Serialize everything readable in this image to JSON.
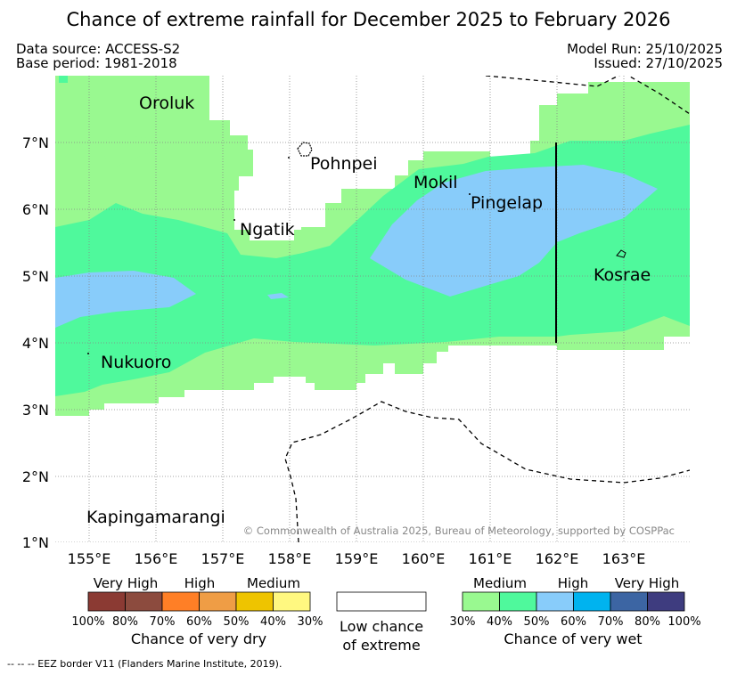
{
  "title": "Chance of extreme rainfall for December 2025 to February 2026",
  "header": {
    "data_source": "Data source: ACCESS-S2",
    "base_period": "Base period: 1981-2018",
    "model_run": "Model Run: 25/10/2025",
    "issued": "Issued: 27/10/2025"
  },
  "map": {
    "x_ticks": [
      "155°E",
      "156°E",
      "157°E",
      "158°E",
      "159°E",
      "160°E",
      "161°E",
      "162°E",
      "163°E"
    ],
    "y_ticks": [
      "7°N",
      "6°N",
      "5°N",
      "4°N",
      "3°N",
      "2°N",
      "1°N"
    ],
    "places": {
      "oroluk": "Oroluk",
      "pohnpei": "Pohnpei",
      "mokil": "Mokil",
      "pingelap": "Pingelap",
      "ngatik": "Ngatik",
      "kosrae": "Kosrae",
      "nukuoro": "Nukuoro",
      "kapingamarangi": "Kapingamarangi"
    },
    "copyright": "© Commonwealth of Australia 2025, Bureau of Meteorology, supported by COSPPac",
    "colors": {
      "wet_medium_30": "#99f990",
      "wet_medium_40": "#4ff99c",
      "wet_high_50": "#88ccfa",
      "sea_low": "#ffffff",
      "grid": "#888888"
    }
  },
  "legend": {
    "dry": {
      "levels": [
        "Very High",
        "High",
        "Medium"
      ],
      "percents": [
        "100%",
        "80%",
        "70%",
        "60%",
        "50%",
        "40%",
        "30%"
      ],
      "colors": [
        "#8b3a33",
        "#8c4b3e",
        "#ff7f26",
        "#ef9d45",
        "#eec400",
        "#fff880"
      ],
      "caption": "Chance of very dry"
    },
    "low": {
      "line1": "Low chance",
      "line2": "of extreme"
    },
    "wet": {
      "levels": [
        "Medium",
        "High",
        "Very High"
      ],
      "percents": [
        "30%",
        "40%",
        "50%",
        "60%",
        "70%",
        "80%",
        "100%"
      ],
      "colors": [
        "#99f990",
        "#4ff99c",
        "#88ccfa",
        "#00b3ef",
        "#3c65a3",
        "#3e3c7f"
      ],
      "caption": "Chance of very wet"
    }
  },
  "footnote": "--  --  -- EEZ border V11 (Flanders Marine Institute, 2019)."
}
